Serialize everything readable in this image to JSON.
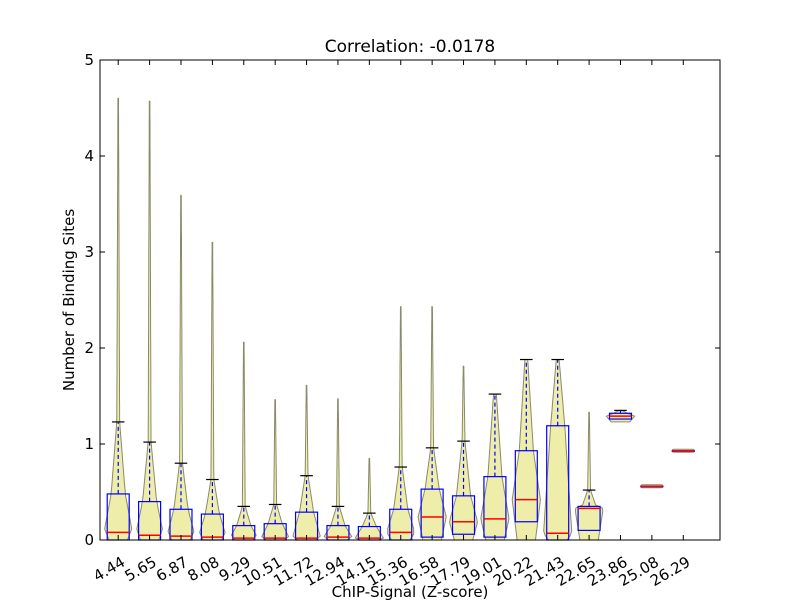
{
  "chart_data": {
    "type": "violin",
    "title": "Correlation: -0.0178",
    "xlabel": "ChIP-Signal (Z-score)",
    "ylabel": "Number of Binding Sites",
    "ylim": [
      0,
      5
    ],
    "yticks": [
      0,
      1,
      2,
      3,
      4,
      5
    ],
    "grid": false,
    "categories": [
      "4.44",
      "5.65",
      "6.87",
      "8.08",
      "9.29",
      "10.51",
      "11.72",
      "12.94",
      "14.15",
      "15.36",
      "16.58",
      "17.79",
      "19.01",
      "20.22",
      "21.43",
      "22.65",
      "23.86",
      "25.08",
      "26.29"
    ],
    "boxes": [
      {
        "min": 0,
        "q1": 0,
        "median": 0.08,
        "q3": 0.48,
        "whisker_high": 1.23,
        "max": 4.6
      },
      {
        "min": 0,
        "q1": 0,
        "median": 0.05,
        "q3": 0.4,
        "whisker_high": 1.02,
        "max": 4.57
      },
      {
        "min": 0,
        "q1": 0,
        "median": 0.04,
        "q3": 0.32,
        "whisker_high": 0.8,
        "max": 3.59
      },
      {
        "min": 0,
        "q1": 0,
        "median": 0.03,
        "q3": 0.27,
        "whisker_high": 0.63,
        "max": 3.1
      },
      {
        "min": 0,
        "q1": 0,
        "median": 0.02,
        "q3": 0.15,
        "whisker_high": 0.35,
        "max": 2.06
      },
      {
        "min": 0,
        "q1": 0,
        "median": 0.02,
        "q3": 0.17,
        "whisker_high": 0.37,
        "max": 1.46
      },
      {
        "min": 0,
        "q1": 0,
        "median": 0.02,
        "q3": 0.29,
        "whisker_high": 0.67,
        "max": 1.61
      },
      {
        "min": 0,
        "q1": 0,
        "median": 0.03,
        "q3": 0.15,
        "whisker_high": 0.35,
        "max": 1.47
      },
      {
        "min": 0,
        "q1": 0,
        "median": 0.02,
        "q3": 0.14,
        "whisker_high": 0.28,
        "max": 0.85
      },
      {
        "min": 0,
        "q1": 0,
        "median": 0.08,
        "q3": 0.32,
        "whisker_high": 0.76,
        "max": 2.43
      },
      {
        "min": 0,
        "q1": 0.03,
        "median": 0.24,
        "q3": 0.53,
        "whisker_high": 0.96,
        "max": 2.43
      },
      {
        "min": 0,
        "q1": 0.06,
        "median": 0.19,
        "q3": 0.46,
        "whisker_high": 1.03,
        "max": 1.81
      },
      {
        "min": 0,
        "q1": 0.03,
        "median": 0.22,
        "q3": 0.66,
        "whisker_high": 1.52,
        "max": 1.52
      },
      {
        "min": 0,
        "q1": 0.19,
        "median": 0.42,
        "q3": 0.93,
        "whisker_high": 1.88,
        "max": 1.88
      },
      {
        "min": 0,
        "q1": 0,
        "median": 0.07,
        "q3": 1.19,
        "whisker_high": 1.88,
        "max": 1.88
      },
      {
        "min": 0,
        "q1": 0.1,
        "median": 0.33,
        "q3": 0.35,
        "whisker_high": 0.52,
        "max": 1.33
      },
      {
        "min": 1.23,
        "q1": 1.26,
        "median": 1.29,
        "q3": 1.32,
        "whisker_high": 1.35,
        "max": 1.35
      },
      {
        "min": 0.56,
        "q1": 0.56,
        "median": 0.56,
        "q3": 0.56,
        "whisker_high": 0.56,
        "max": 0.56
      },
      {
        "min": 0.93,
        "q1": 0.93,
        "median": 0.93,
        "q3": 0.93,
        "whisker_high": 0.93,
        "max": 0.93
      }
    ],
    "colors": {
      "violin_fill": "#eeeeaa",
      "violin_edge": "#8a8a6a",
      "box": "#0000ff",
      "median": "#ff0000",
      "whisker_cap": "#000000"
    }
  }
}
